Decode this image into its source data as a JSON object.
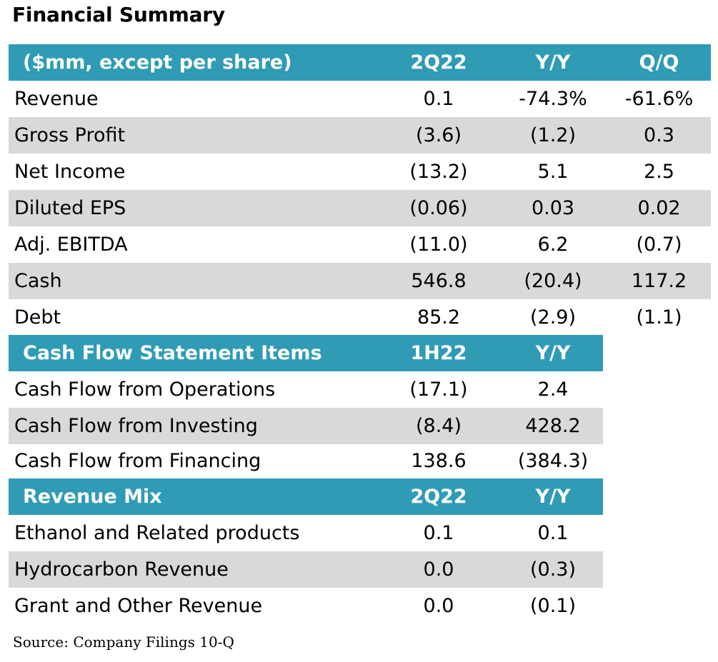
{
  "title": "Financial Summary",
  "summary": {
    "header": {
      "label": "($mm, except per share)",
      "c1": "2Q22",
      "c2": "Y/Y",
      "c3": "Q/Q"
    },
    "rows": [
      {
        "label": "Revenue",
        "c1": "0.1",
        "c2": "-74.3%",
        "c3": "-61.6%"
      },
      {
        "label": "Gross Profit",
        "c1": "(3.6)",
        "c2": "(1.2)",
        "c3": "0.3"
      },
      {
        "label": "Net Income",
        "c1": "(13.2)",
        "c2": "5.1",
        "c3": "2.5"
      },
      {
        "label": "Diluted EPS",
        "c1": "(0.06)",
        "c2": "0.03",
        "c3": "0.02"
      },
      {
        "label": "Adj. EBITDA",
        "c1": "(11.0)",
        "c2": "6.2",
        "c3": "(0.7)"
      },
      {
        "label": "Cash",
        "c1": "546.8",
        "c2": "(20.4)",
        "c3": "117.2"
      },
      {
        "label": "Debt",
        "c1": "85.2",
        "c2": "(2.9)",
        "c3": "(1.1)"
      }
    ]
  },
  "cash_flow": {
    "header": {
      "label": "Cash Flow Statement Items",
      "c1": "1H22",
      "c2": "Y/Y"
    },
    "rows": [
      {
        "label": "Cash Flow from Operations",
        "c1": "(17.1)",
        "c2": "2.4"
      },
      {
        "label": "Cash Flow from Investing",
        "c1": "(8.4)",
        "c2": "428.2"
      },
      {
        "label": "Cash Flow from Financing",
        "c1": "138.6",
        "c2": "(384.3)"
      }
    ]
  },
  "revenue_mix": {
    "header": {
      "label": "Revenue Mix",
      "c1": "2Q22",
      "c2": "Y/Y"
    },
    "rows": [
      {
        "label": "Ethanol and Related products",
        "c1": "0.1",
        "c2": "0.1"
      },
      {
        "label": "Hydrocarbon Revenue",
        "c1": "0.0",
        "c2": "(0.3)"
      },
      {
        "label": "Grant and Other Revenue",
        "c1": "0.0",
        "c2": "(0.1)"
      }
    ]
  },
  "source": "Source: Company Filings 10-Q",
  "colors": {
    "header_bg": "#2f9bb5",
    "shade_bg": "#d9d9d9"
  }
}
